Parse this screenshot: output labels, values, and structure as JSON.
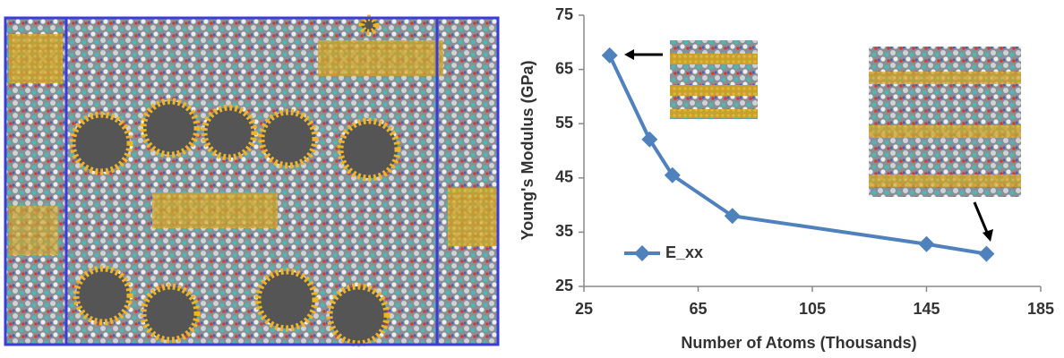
{
  "chart_data": {
    "type": "line",
    "xlabel": "Number of Atoms (Thousands)",
    "ylabel": "Young's Modulus (GPa)",
    "x": [
      34,
      48,
      56,
      77,
      145,
      166
    ],
    "series": [
      {
        "name": "E_xx",
        "color": "#4f81bd",
        "values": [
          67.6,
          52.1,
          45.5,
          38,
          32.8,
          31
        ]
      }
    ],
    "xlim": [
      25,
      185
    ],
    "xticks": [
      25,
      65,
      105,
      145,
      185
    ],
    "ylim": [
      25,
      75
    ],
    "yticks": [
      25,
      35,
      45,
      55,
      65,
      75
    ],
    "legend": "lower left"
  }
}
